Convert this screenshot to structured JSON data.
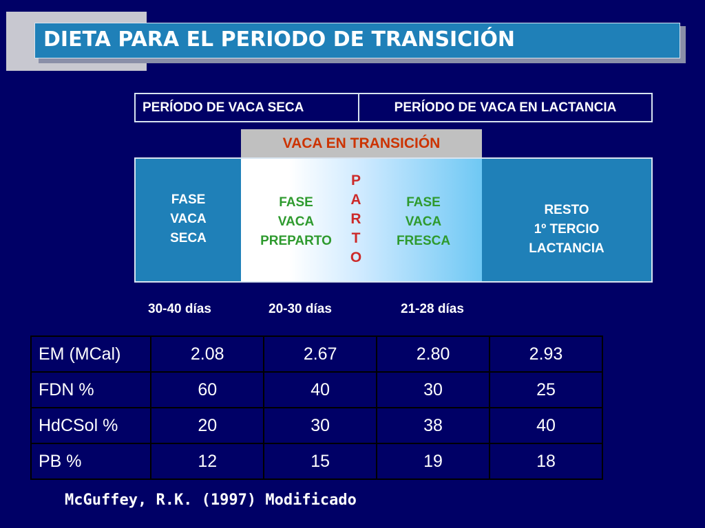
{
  "title": "DIETA PARA EL PERIODO DE TRANSICIÓN",
  "periods": {
    "dry": "PERÍODO DE VACA SECA",
    "lactation": "PERÍODO DE VACA EN LACTANCIA"
  },
  "transition_label": "VACA EN TRANSICIÓN",
  "phases": {
    "dry": [
      "FASE",
      "VACA",
      "SECA"
    ],
    "prepartum": [
      "FASE",
      "VACA",
      "PREPARTO"
    ],
    "parto": [
      "P",
      "A",
      "R",
      "T",
      "O"
    ],
    "fresh": [
      "FASE",
      "VACA",
      "FRESCA"
    ],
    "rest": [
      "RESTO",
      "1º TERCIO",
      "LACTANCIA"
    ]
  },
  "days": [
    "30-40 días",
    "20-30 días",
    "21-28 días"
  ],
  "table": {
    "rows": [
      {
        "label": "EM (MCal)",
        "values": [
          "2.08",
          "2.67",
          "2.80",
          "2.93"
        ]
      },
      {
        "label": "FDN %",
        "values": [
          "60",
          "40",
          "30",
          "25"
        ]
      },
      {
        "label": "HdCSol %",
        "values": [
          "20",
          "30",
          "38",
          "40"
        ]
      },
      {
        "label": "PB %",
        "values": [
          "12",
          "15",
          "19",
          "18"
        ]
      }
    ]
  },
  "reference": "McGuffey, R.K. (1997) Modificado",
  "colors": {
    "background": "#000066",
    "box_blue": "#1f80b8",
    "transition_red": "#cc3300",
    "phase_green": "#2e9a2e",
    "parto_red": "#cc2a2a"
  }
}
